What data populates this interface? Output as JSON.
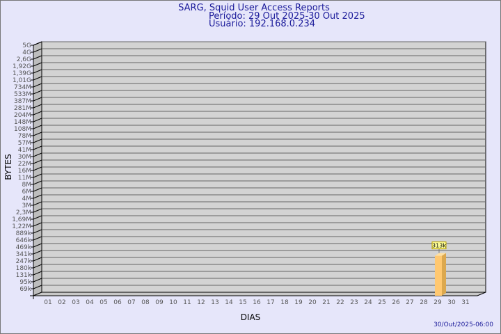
{
  "chart_data": {
    "type": "bar",
    "title": "SARG, Squid User Access Reports",
    "subtitle_period": "Período: 29 Out 2025-30 Out 2025",
    "subtitle_user": "Usuário: 192.168.0.234",
    "xlabel": "DIAS",
    "ylabel": "BYTES",
    "y_scale": "log",
    "grid": true,
    "categories": [
      "01",
      "02",
      "03",
      "04",
      "05",
      "06",
      "07",
      "08",
      "09",
      "10",
      "11",
      "12",
      "13",
      "14",
      "15",
      "16",
      "17",
      "18",
      "19",
      "20",
      "21",
      "22",
      "23",
      "24",
      "25",
      "26",
      "27",
      "28",
      "29",
      "30",
      "31"
    ],
    "y_ticks": [
      "5G",
      "4G",
      "2,6G",
      "1,92G",
      "1,39G",
      "1,01G",
      "734M",
      "533M",
      "387M",
      "281M",
      "204M",
      "148M",
      "108M",
      "78M",
      "57M",
      "41M",
      "30M",
      "22M",
      "16M",
      "11M",
      "8M",
      "6M",
      "4M",
      "3M",
      "2,3M",
      "1,69M",
      "1,22M",
      "889k",
      "646k",
      "469k",
      "341k",
      "247k",
      "180k",
      "131k",
      "95k",
      "69k"
    ],
    "bars": [
      {
        "category": "29",
        "value": 313000,
        "label": "313k"
      }
    ],
    "colors": {
      "background": "#e6e6fa",
      "plot": "#d3d3d3",
      "bar_front": "#ffc870",
      "bar_side": "#dca84e",
      "label_box": "#ffff99",
      "text": "#1a1a9a"
    }
  },
  "footer": {
    "timestamp": "30/Out/2025-06:00"
  }
}
